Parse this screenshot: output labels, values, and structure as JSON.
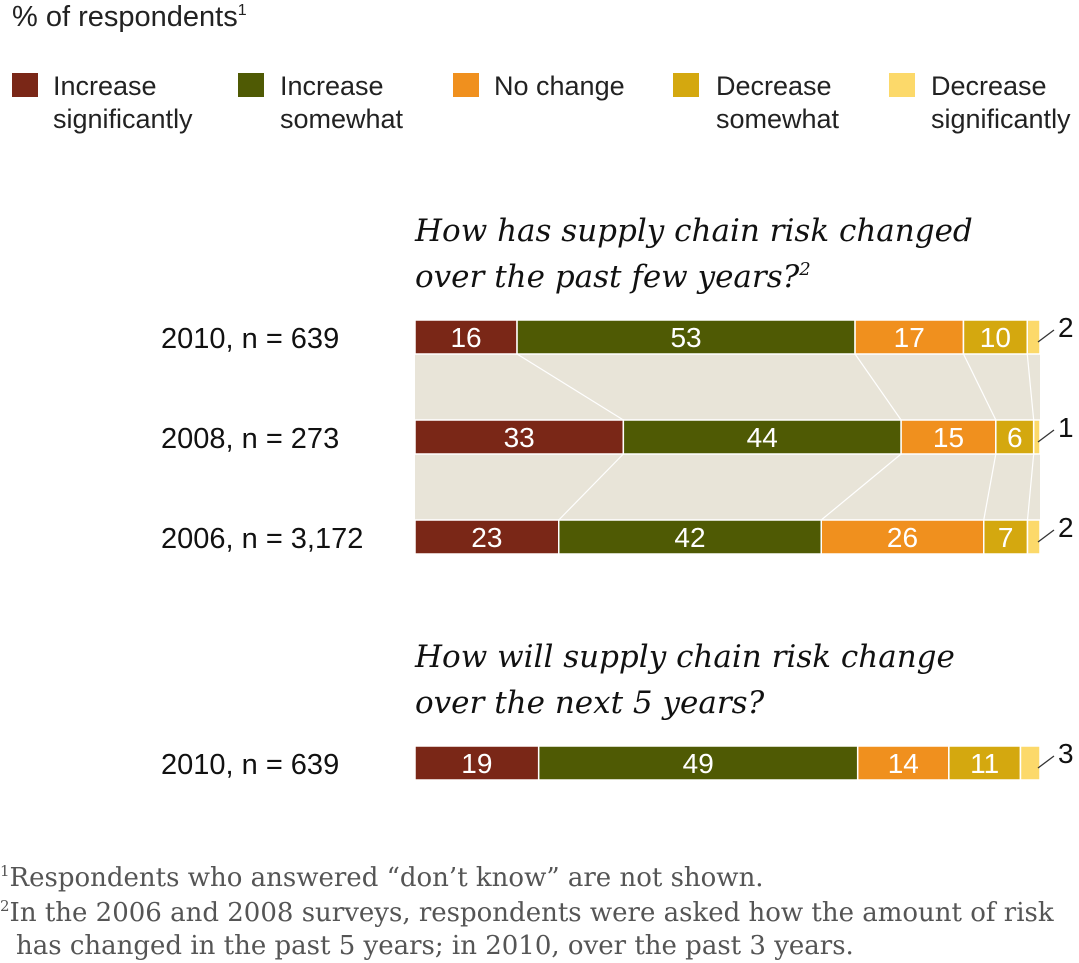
{
  "unit_label": "% of respondents",
  "unit_label_sup": "1",
  "legend": [
    {
      "line1": "Increase",
      "line2": "significantly",
      "color": "#7a2717"
    },
    {
      "line1": "Increase",
      "line2": "somewhat",
      "color": "#4f5a04"
    },
    {
      "line1": "No change",
      "line2": "",
      "color": "#f0901e"
    },
    {
      "line1": "Decrease",
      "line2": "somewhat",
      "color": "#d4a80f"
    },
    {
      "line1": "Decrease",
      "line2": "significantly",
      "color": "#fcd96a"
    }
  ],
  "chart_data": [
    {
      "type": "bar",
      "orientation": "horizontal-stacked",
      "title_line1": "How has supply chain risk changed",
      "title_line2": "over the past few years?",
      "title_sup": "2",
      "categories": [
        "2010, n = 639",
        "2008, n = 273",
        "2006, n = 3,172"
      ],
      "series": [
        {
          "name": "Increase significantly",
          "values": [
            16,
            33,
            23
          ]
        },
        {
          "name": "Increase somewhat",
          "values": [
            53,
            44,
            42
          ]
        },
        {
          "name": "No change",
          "values": [
            17,
            15,
            26
          ]
        },
        {
          "name": "Decrease somewhat",
          "values": [
            10,
            6,
            7
          ]
        },
        {
          "name": "Decrease significantly",
          "values": [
            2,
            1,
            2
          ]
        }
      ]
    },
    {
      "type": "bar",
      "orientation": "horizontal-stacked",
      "title_line1": "How will supply chain risk change",
      "title_line2": "over the next 5 years?",
      "title_sup": "",
      "categories": [
        "2010, n = 639"
      ],
      "series": [
        {
          "name": "Increase significantly",
          "values": [
            19
          ]
        },
        {
          "name": "Increase somewhat",
          "values": [
            49
          ]
        },
        {
          "name": "No change",
          "values": [
            14
          ]
        },
        {
          "name": "Decrease somewhat",
          "values": [
            11
          ]
        },
        {
          "name": "Decrease significantly",
          "values": [
            3
          ]
        }
      ]
    }
  ],
  "footnotes": [
    {
      "mark": "1",
      "lines": [
        "Respondents who answered “don’t know” are not shown."
      ]
    },
    {
      "mark": "2",
      "lines": [
        "In the 2006 and 2008 surveys, respondents were asked how the amount of risk",
        "has changed in the past 5 years; in 2010, over the past 3 years."
      ]
    }
  ]
}
